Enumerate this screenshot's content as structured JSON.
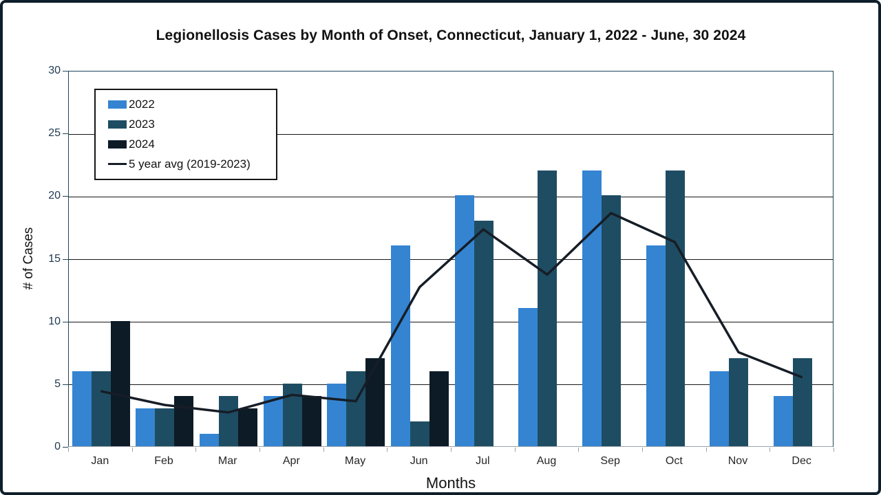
{
  "frame": {
    "border_color": "#0E1F2B",
    "background": "#FFFFFF"
  },
  "chart_data": {
    "type": "bar",
    "title": "Legionellosis Cases by Month of Onset, Connecticut, January 1, 2022 - June, 30 2024",
    "xlabel": "Months",
    "ylabel": "# of Cases",
    "categories": [
      "Jan",
      "Feb",
      "Mar",
      "Apr",
      "May",
      "Jun",
      "Jul",
      "Aug",
      "Sep",
      "Oct",
      "Nov",
      "Dec"
    ],
    "series": [
      {
        "name": "2022",
        "type": "bar",
        "color": "#3484D2",
        "values": [
          6,
          3,
          1,
          4,
          5,
          16,
          20,
          11,
          22,
          16,
          6,
          4
        ]
      },
      {
        "name": "2023",
        "type": "bar",
        "color": "#1E4D63",
        "values": [
          6,
          3,
          4,
          5,
          6,
          2,
          18,
          22,
          20,
          22,
          7,
          7
        ]
      },
      {
        "name": "2024",
        "type": "bar",
        "color": "#0D1B26",
        "values": [
          10,
          4,
          3,
          4,
          7,
          6,
          null,
          null,
          null,
          null,
          null,
          null
        ]
      },
      {
        "name": "5 year avg (2019-2023)",
        "type": "line",
        "color": "#161D26",
        "values": [
          4.5,
          3.4,
          2.8,
          4.2,
          3.7,
          12.8,
          17.4,
          13.8,
          18.7,
          16.4,
          7.6,
          5.6
        ]
      }
    ],
    "ylim": [
      0,
      30
    ],
    "yticks": [
      0,
      5,
      10,
      15,
      20,
      25,
      30
    ],
    "grid": true,
    "gridline_color": "#161616",
    "legend_position": "top-left-inside"
  }
}
